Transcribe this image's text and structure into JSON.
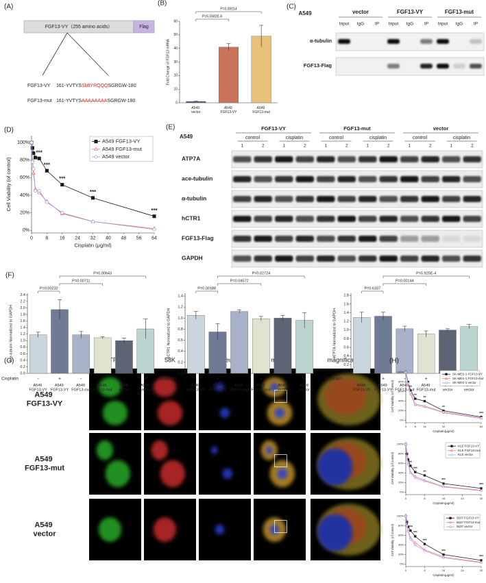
{
  "panel_a": {
    "label": "(A)",
    "protein": "FGF13-VY（255 amino acids）",
    "tag": "Flag",
    "sequences": [
      {
        "name": "FGF13-VY",
        "prefix": "161-YVTYS",
        "motif": "SMIYRQQQ",
        "suffix": "SGRGW-180"
      },
      {
        "name": "FGF13-mut",
        "prefix": "161-YVTYS",
        "motif": "AAAAAAAA",
        "suffix": "SGRGW-180"
      }
    ]
  },
  "panel_c": {
    "label": "(C)",
    "cell": "A549",
    "groups": [
      "vector",
      "FGF13-VY",
      "FGF13-mut"
    ],
    "lanes": [
      "Input",
      "IgG",
      "IP"
    ],
    "rows": [
      "α-tubulin",
      "FGF13-Flag"
    ]
  },
  "panel_e": {
    "label": "(E)",
    "cell": "A549",
    "groups": [
      "FGF13-VY",
      "FGF13-mut",
      "vector"
    ],
    "conditions": [
      "control",
      "cisplatin"
    ],
    "lanes": [
      1,
      2
    ],
    "rows": [
      "ATP7A",
      "ace-tubulin",
      "α-tubulin",
      "hCTR1",
      "FGF13-Flag",
      "GAPDH"
    ]
  },
  "panel_g": {
    "label": "(G)",
    "columns": [
      "ATP7A",
      "58K",
      "nucleus",
      "merge",
      "magnification"
    ],
    "rows": [
      "A549 FGF13-VY",
      "A549 FGF13-mut",
      "A549 vector"
    ]
  },
  "chart_data": [
    {
      "type": "bar",
      "panel": "(B)",
      "ylabel": "Fold Change of FGF13 mRNA",
      "categories": [
        "A549 vector",
        "A549 FGF13-VY",
        "A549 FGF13-mut"
      ],
      "values": [
        1,
        41,
        49
      ],
      "errors": [
        0.2,
        2.5,
        8
      ],
      "colors": [
        "#555c80",
        "#c8735a",
        "#e8c07a"
      ],
      "ylim": [
        0,
        60
      ],
      "yticks": [
        0,
        10,
        20,
        30,
        40,
        50,
        60
      ],
      "comparisons": [
        {
          "bars": [
            0,
            1
          ],
          "label": "P=5.0582E-6"
        },
        {
          "bars": [
            0,
            2
          ],
          "label": "P=0.00014"
        }
      ]
    },
    {
      "type": "line",
      "panel": "(D)",
      "xlabel": "Cisplatin (μg/ml)",
      "ylabel": "Cell Viability (of control)",
      "x": [
        0,
        0.5,
        1,
        2,
        4,
        8,
        16,
        32,
        64
      ],
      "xlim": [
        0,
        64
      ],
      "xticks": [
        0,
        8,
        16,
        24,
        32,
        40,
        48,
        56,
        64
      ],
      "ylim": [
        -3,
        108
      ],
      "yticks": [
        {
          "value": 0,
          "label": "0%"
        },
        {
          "value": 20,
          "label": "20%"
        },
        {
          "value": 40,
          "label": "40%"
        },
        {
          "value": 60,
          "label": "60%"
        },
        {
          "value": 80,
          "label": "80%"
        },
        {
          "value": 100,
          "label": "100%"
        }
      ],
      "legend": "upper right",
      "series": [
        {
          "name": "A549 FGF13-VY",
          "color": "#1a1a1a",
          "marker": "square",
          "filled": true,
          "values": [
            100,
            94,
            88,
            83,
            82,
            68,
            52,
            37,
            16
          ]
        },
        {
          "name": "A549 FGF13-mut",
          "color": "#e8736f",
          "marker": "triangle",
          "filled": false,
          "values": [
            100,
            80,
            65,
            47,
            43,
            33,
            19,
            10,
            2
          ]
        },
        {
          "name": "A549 vector",
          "color": "#9b8fe0",
          "marker": "circle",
          "filled": false,
          "values": [
            100,
            78,
            70,
            45,
            45,
            32,
            20,
            10,
            1
          ]
        }
      ],
      "annotations": [
        {
          "x": 4,
          "text": "***"
        },
        {
          "x": 8,
          "text": "***"
        },
        {
          "x": 16,
          "text": "***"
        },
        {
          "x": 32,
          "text": "***"
        },
        {
          "x": 64,
          "text": "***"
        }
      ]
    },
    {
      "type": "bar",
      "panel": "(F)",
      "ylabel": "ace-tubulin Normalized to GAPDH",
      "cisplatin_label": "Cisplatin",
      "cisplatin": [
        "-",
        "+",
        "-",
        "+",
        "-",
        "+"
      ],
      "categories": [
        "A549 FGF13-VY",
        "A549 FGF13-VY",
        "A549 FGF13-mut",
        "A549 FGF13-mut",
        "A549 vector",
        "A549 vector"
      ],
      "values": [
        1.18,
        1.95,
        1.18,
        1.09,
        1.0,
        1.36
      ],
      "errors": [
        0.08,
        0.3,
        0.1,
        0.03,
        0.08,
        0.3
      ],
      "colors": [
        "#c9d6de",
        "#6f7a94",
        "#a7b2c8",
        "#dfe3cf",
        "#5d6574",
        "#bcd4d0"
      ],
      "ylim": [
        0,
        2.45
      ],
      "yticks": [
        {
          "value": 0,
          "label": "0.0"
        },
        0.2,
        0.4,
        0.6,
        0.8,
        {
          "value": 1,
          "label": "1.0"
        },
        1.2,
        1.4,
        1.6,
        1.8,
        {
          "value": 2,
          "label": "2.0"
        },
        2.2,
        2.4
      ],
      "comparisons": [
        {
          "bars": [
            0,
            1
          ],
          "label": "P=0.00232"
        },
        {
          "bars": [
            1,
            3
          ],
          "label": "P=0.00711"
        },
        {
          "bars": [
            1,
            5
          ],
          "label": "P=0.00643"
        }
      ]
    },
    {
      "type": "bar",
      "ylabel": "hCTR1 Normalized to GAPDH",
      "cisplatin_label": "Cisplatin",
      "cisplatin": [
        "-",
        "+",
        "-",
        "+",
        "-",
        "+"
      ],
      "categories": [
        "A549 FGF13-VY",
        "A549 FGF13-VY",
        "A549 FGF13-mut",
        "A549 FGF13-mut",
        "A549 vector",
        "A549 vector"
      ],
      "values": [
        1.05,
        0.75,
        1.12,
        0.99,
        1.0,
        0.96
      ],
      "errors": [
        0.07,
        0.15,
        0.03,
        0.04,
        0.05,
        0.14
      ],
      "colors": [
        "#c9d6de",
        "#6f7a94",
        "#a7b2c8",
        "#dfe3cf",
        "#5d6574",
        "#bcd4d0"
      ],
      "ylim": [
        0,
        1.45
      ],
      "yticks": [
        {
          "value": 0,
          "label": "0.0"
        },
        0.2,
        0.4,
        0.6,
        0.8,
        {
          "value": 1,
          "label": "1.0"
        },
        1.2,
        1.4
      ],
      "comparisons": [
        {
          "bars": [
            0,
            1
          ],
          "label": "P=0.00188"
        },
        {
          "bars": [
            1,
            3
          ],
          "label": "P=0.04572"
        },
        {
          "bars": [
            1,
            5
          ],
          "label": "P=0.02724"
        }
      ]
    },
    {
      "type": "bar",
      "ylabel": "ATP7A Normalized to GAPDH",
      "cisplatin_label": "Cisplatin",
      "cisplatin": [
        "-",
        "+",
        "-",
        "+",
        "-",
        "+"
      ],
      "categories": [
        "A549 FGF13-VY",
        "A549 FGF13-VY",
        "A549 FGF13-mut",
        "A549 FGF13-mut",
        "A549 vector",
        "A549 vector"
      ],
      "values": [
        1.29,
        1.32,
        1.03,
        0.91,
        1.0,
        1.08
      ],
      "errors": [
        0.12,
        0.09,
        0.06,
        0.07,
        0.03,
        0.05
      ],
      "colors": [
        "#c9d6de",
        "#6f7a94",
        "#a7b2c8",
        "#dfe3cf",
        "#5d6574",
        "#bcd4d0"
      ],
      "ylim": [
        0,
        1.85
      ],
      "yticks": [
        {
          "value": 0,
          "label": "0.0"
        },
        0.2,
        0.4,
        0.6,
        0.8,
        {
          "value": 1,
          "label": "1.0"
        },
        1.2,
        1.4,
        1.6,
        1.8
      ],
      "comparisons": [
        {
          "bars": [
            0,
            1
          ],
          "label": "P=0.6337"
        },
        {
          "bars": [
            1,
            3
          ],
          "label": "P=0.00144"
        },
        {
          "bars": [
            1,
            5
          ],
          "label": "P=5.925E-4"
        }
      ]
    },
    {
      "type": "line",
      "panel": "(H)",
      "xlabel": "Cisplatin(μg/ml)",
      "ylabel": "Cell Viability (of control)",
      "x": [
        0,
        2,
        4,
        8,
        16,
        32,
        64
      ],
      "xlim": [
        0,
        64
      ],
      "xticks": [
        0,
        8,
        16,
        32,
        64
      ],
      "ylim": [
        -5,
        105
      ],
      "yticks": [
        {
          "value": 0,
          "label": "0%"
        },
        {
          "value": 20,
          "label": "20%"
        },
        {
          "value": 40,
          "label": "40%"
        },
        {
          "value": 60,
          "label": "60%"
        },
        {
          "value": 80,
          "label": "80%"
        },
        {
          "value": 100,
          "label": "100%"
        }
      ],
      "legend": "upper right",
      "series": [
        {
          "name": "SK-MES-1 FGF13-VY",
          "color": "#1a1a1a",
          "marker": "square",
          "filled": true,
          "values": [
            100,
            80,
            62,
            45,
            40,
            20,
            7
          ]
        },
        {
          "name": "SK-MES-1 FGF13-mut",
          "color": "#f08080",
          "marker": "triangle",
          "filled": false,
          "values": [
            100,
            75,
            55,
            32,
            28,
            16,
            4
          ]
        },
        {
          "name": "SK-MES-1 vector",
          "color": "#b09ae8",
          "marker": "circle",
          "filled": false,
          "values": [
            100,
            77,
            58,
            34,
            30,
            17,
            5
          ]
        }
      ],
      "annotations": [
        {
          "x": 4,
          "text": "**"
        },
        {
          "x": 8,
          "text": "**"
        },
        {
          "x": 16,
          "text": "**"
        },
        {
          "x": 32,
          "text": "**"
        },
        {
          "x": 64,
          "text": "***"
        }
      ]
    },
    {
      "type": "line",
      "xlabel": "Cisplatin(μg/ml)",
      "ylabel": "Cell Viability (of control)",
      "x": [
        0,
        0.5,
        1,
        2,
        4,
        8,
        16,
        32
      ],
      "xlim": [
        0,
        32
      ],
      "xticks": [
        0,
        8,
        16,
        24,
        32
      ],
      "ylim": [
        -5,
        105
      ],
      "yticks": [
        {
          "value": 0,
          "label": "0%"
        },
        {
          "value": 20,
          "label": "20%"
        },
        {
          "value": 40,
          "label": "40%"
        },
        {
          "value": 60,
          "label": "60%"
        },
        {
          "value": 80,
          "label": "80%"
        },
        {
          "value": 100,
          "label": "100%"
        }
      ],
      "legend": "upper right",
      "series": [
        {
          "name": "KLE FGF13-VY",
          "color": "#1a1a1a",
          "marker": "square",
          "filled": true,
          "values": [
            100,
            80,
            68,
            55,
            42,
            35,
            18,
            8
          ]
        },
        {
          "name": "KLE FGF13-mut",
          "color": "#f08080",
          "marker": "triangle",
          "filled": false,
          "values": [
            100,
            75,
            60,
            42,
            33,
            25,
            12,
            4
          ]
        },
        {
          "name": "KLE vector",
          "color": "#b09ae8",
          "marker": "circle",
          "filled": false,
          "values": [
            100,
            73,
            58,
            40,
            30,
            23,
            11,
            3
          ]
        }
      ],
      "annotations": [
        {
          "x": 2,
          "text": "**"
        },
        {
          "x": 4,
          "text": "***"
        },
        {
          "x": 8,
          "text": "**"
        },
        {
          "x": 16,
          "text": "***"
        },
        {
          "x": 32,
          "text": "***"
        }
      ]
    },
    {
      "type": "line",
      "xlabel": "Cisplatin(μg/ml)",
      "ylabel": "Cell Viability (of control)",
      "x": [
        0,
        0.5,
        1,
        2,
        4,
        8,
        16,
        32
      ],
      "xlim": [
        0,
        32
      ],
      "xticks": [
        0,
        8,
        16,
        24,
        32
      ],
      "ylim": [
        -5,
        105
      ],
      "yticks": [
        {
          "value": 0,
          "label": "0%"
        },
        {
          "value": 20,
          "label": "20%"
        },
        {
          "value": 40,
          "label": "40%"
        },
        {
          "value": 60,
          "label": "60%"
        },
        {
          "value": 80,
          "label": "80%"
        },
        {
          "value": 100,
          "label": "100%"
        }
      ],
      "legend": "upper right",
      "series": [
        {
          "name": "5637 FGF13-VY",
          "color": "#1a1a1a",
          "marker": "square",
          "filled": true,
          "values": [
            100,
            88,
            78,
            70,
            58,
            42,
            20,
            8
          ]
        },
        {
          "name": "5637 FGF13-mut",
          "color": "#f08080",
          "marker": "triangle",
          "filled": false,
          "values": [
            100,
            82,
            70,
            55,
            45,
            30,
            15,
            4
          ]
        },
        {
          "name": "5637 vector",
          "color": "#b09ae8",
          "marker": "circle",
          "filled": false,
          "values": [
            100,
            80,
            68,
            52,
            40,
            28,
            13,
            3
          ]
        }
      ],
      "annotations": [
        {
          "x": 2,
          "text": "***"
        },
        {
          "x": 4,
          "text": "***"
        },
        {
          "x": 8,
          "text": "***"
        },
        {
          "x": 16,
          "text": "***"
        },
        {
          "x": 32,
          "text": "***"
        }
      ]
    }
  ]
}
